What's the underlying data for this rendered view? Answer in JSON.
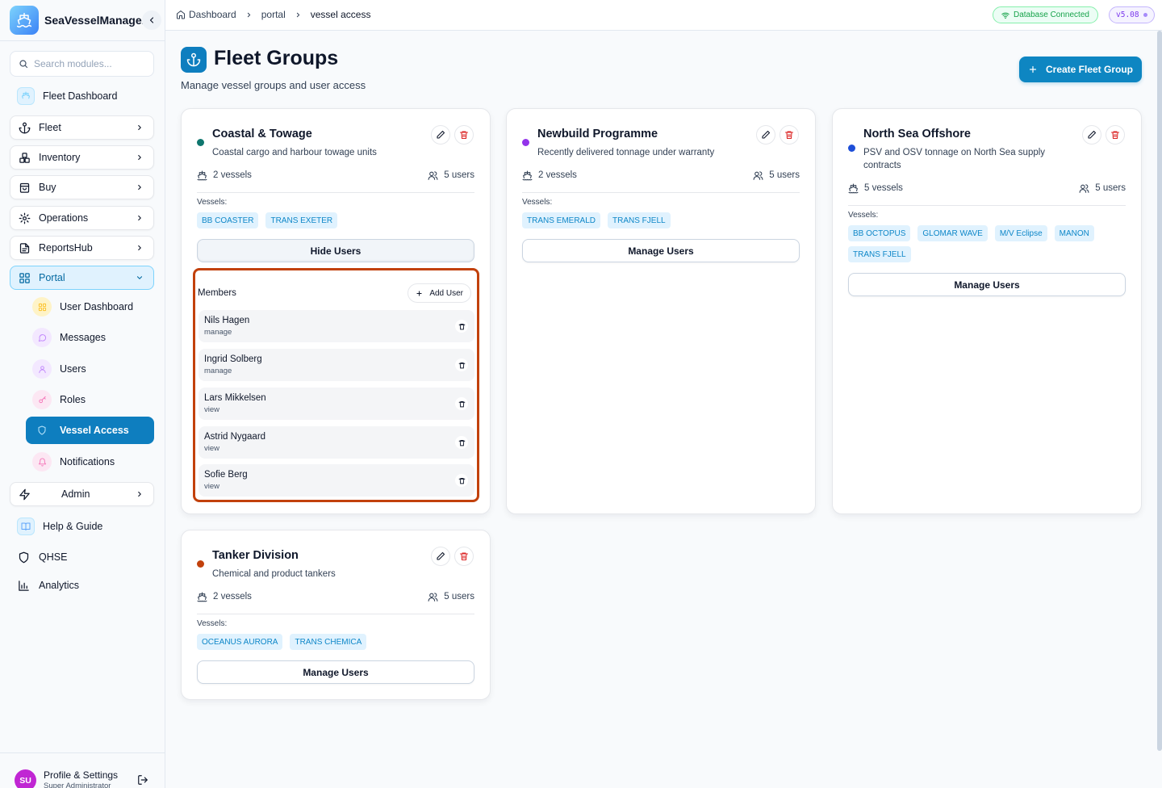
{
  "app": {
    "name": "SeaVesselManager",
    "version": "v5.08",
    "db_status": "Database Connected"
  },
  "search": {
    "placeholder": "Search modules..."
  },
  "sidebar": {
    "fleet_dashboard": "Fleet Dashboard",
    "fleet": "Fleet",
    "inventory": "Inventory",
    "buy": "Buy",
    "operations": "Operations",
    "reportshub": "ReportsHub",
    "portal": "Portal",
    "portal_items": {
      "user_dashboard": "User Dashboard",
      "messages": "Messages",
      "users": "Users",
      "roles": "Roles",
      "vessel_access": "Vessel Access",
      "notifications": "Notifications"
    },
    "admin": "Admin",
    "help": "Help & Guide",
    "qhse": "QHSE",
    "analytics": "Analytics"
  },
  "profile": {
    "initials": "SU",
    "name": "Profile & Settings",
    "role": "Super Administrator"
  },
  "breadcrumb": [
    "Dashboard",
    "portal",
    "vessel access"
  ],
  "header": {
    "title": "Fleet Groups",
    "subtitle": "Manage vessel groups and user access",
    "create_label": "Create Fleet Group"
  },
  "labels": {
    "vessels": "Vessels:",
    "members": "Members",
    "add_user": "Add User",
    "manage_users": "Manage Users",
    "hide_users": "Hide Users"
  },
  "groups": [
    {
      "name": "Coastal & Towage",
      "desc": "Coastal cargo and harbour towage units",
      "dot_color": "#0f766e",
      "vessel_count": "2 vessels",
      "user_count": "5 users",
      "vessels": [
        "BB COASTER",
        "TRANS EXETER"
      ],
      "members": [
        {
          "name": "Nils Hagen",
          "role": "manage"
        },
        {
          "name": "Ingrid Solberg",
          "role": "manage"
        },
        {
          "name": "Lars Mikkelsen",
          "role": "view"
        },
        {
          "name": "Astrid Nygaard",
          "role": "view"
        },
        {
          "name": "Sofie Berg",
          "role": "view"
        }
      ]
    },
    {
      "name": "Newbuild Programme",
      "desc": "Recently delivered tonnage under warranty",
      "dot_color": "#9333ea",
      "vessel_count": "2 vessels",
      "user_count": "5 users",
      "vessels": [
        "TRANS EMERALD",
        "TRANS FJELL"
      ]
    },
    {
      "name": "North Sea Offshore",
      "desc": "PSV and OSV tonnage on North Sea supply contracts",
      "dot_color": "#1d4ed8",
      "vessel_count": "5 vessels",
      "user_count": "5 users",
      "vessels": [
        "BB OCTOPUS",
        "GLOMAR WAVE",
        "M/V Eclipse",
        "MANON",
        "TRANS FJELL"
      ]
    },
    {
      "name": "Tanker Division",
      "desc": "Chemical and product tankers",
      "dot_color": "#c2410c",
      "vessel_count": "2 vessels",
      "user_count": "5 users",
      "vessels": [
        "OCEANUS AURORA",
        "TRANS CHEMICA"
      ]
    }
  ],
  "colors": {
    "accent": "#0e86c2",
    "active_nav": "#0e7ebf",
    "highlight": "#c2410c",
    "danger": "#dc2626"
  }
}
